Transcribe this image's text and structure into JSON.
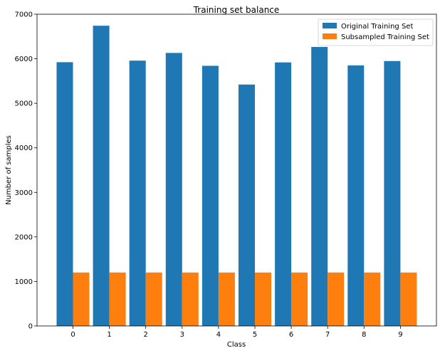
{
  "chart_data": {
    "type": "bar",
    "title": "Training set balance",
    "xlabel": "Class",
    "ylabel": "Number of samples",
    "categories": [
      "0",
      "1",
      "2",
      "3",
      "4",
      "5",
      "6",
      "7",
      "8",
      "9"
    ],
    "series": [
      {
        "name": "Original Training Set",
        "color": "#1f77b4",
        "values": [
          5923,
          6742,
          5958,
          6131,
          5842,
          5421,
          5918,
          6265,
          5851,
          5949
        ]
      },
      {
        "name": "Subsampled Training Set",
        "color": "#ff7f0e",
        "values": [
          1200,
          1200,
          1200,
          1200,
          1200,
          1200,
          1200,
          1200,
          1200,
          1200
        ]
      }
    ],
    "ylim": [
      0,
      7000
    ],
    "yticks": [
      "0",
      "1000",
      "2000",
      "3000",
      "4000",
      "5000",
      "6000",
      "7000"
    ],
    "grid": false,
    "legend": "top-right"
  }
}
